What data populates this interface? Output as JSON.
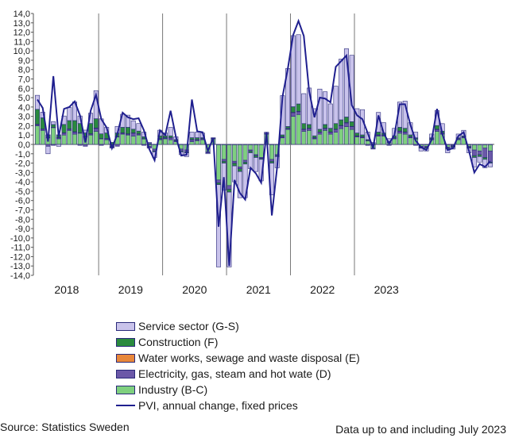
{
  "colors": {
    "service": "#c9c3eb",
    "construction": "#2a8a3e",
    "water": "#e8873a",
    "electricity": "#6b58a8",
    "industry": "#7fd07f",
    "line": "#1f1f8f",
    "outline": "#2a2a7a"
  },
  "chart_data": {
    "type": "bar",
    "stacked": true,
    "ylim": [
      -14,
      14
    ],
    "yticks": [
      "14,0",
      "13,0",
      "12,0",
      "11,0",
      "10,0",
      "9,0",
      "8,0",
      "7,0",
      "6,0",
      "5,0",
      "4,0",
      "3,0",
      "2,0",
      "1,0",
      "0,0",
      "-1,0",
      "-2,0",
      "-3,0",
      "-4,0",
      "-5,0",
      "-6,0",
      "-7,0",
      "-8,0",
      "-9,0",
      "-10,0",
      "-11,0",
      "-12,0",
      "-13,0",
      "-14,0"
    ],
    "years": [
      "2018",
      "2019",
      "2020",
      "2021",
      "2022",
      "2023"
    ],
    "legend_position": "bottom",
    "series": [
      {
        "name": "Service sector (G-S)",
        "key": "service",
        "values": [
          1.5,
          0.6,
          -0.8,
          0.3,
          -0.2,
          0.9,
          1.4,
          2.0,
          0.8,
          0.3,
          1.1,
          3.0,
          1.6,
          0.6,
          -0.1,
          0.7,
          1.4,
          1.3,
          0.9,
          0.8,
          0.5,
          0.1,
          -0.6,
          0.6,
          0.3,
          0.9,
          0.3,
          -0.3,
          -0.4,
          0.6,
          0.6,
          0.5,
          -0.1,
          0,
          -8.8,
          -2.9,
          -8.0,
          -1.7,
          -2.8,
          -3.6,
          -1.7,
          -1.5,
          -2.3,
          0.1,
          -3.4,
          -1.2,
          4.2,
          6.2,
          7.6,
          7.4,
          3.2,
          3.9,
          2.9,
          4.3,
          3.5,
          2.6,
          4.0,
          6.5,
          7.3,
          7.1,
          2.6,
          2.7,
          0.8,
          0.1,
          2.1,
          1.1,
          0.3,
          0.8,
          2.7,
          2.9,
          1.3,
          0.6,
          -0.3,
          -0.3,
          0.4,
          1.6,
          0.8,
          -0.4,
          -0.2,
          0.4,
          0.6,
          -0.5,
          -1.0,
          -0.6,
          -0.9,
          -0.4
        ]
      },
      {
        "name": "Construction (F)",
        "key": "construction",
        "values": [
          1.6,
          1.2,
          0.3,
          0.3,
          0.3,
          0.9,
          0.9,
          1.2,
          1.0,
          0.4,
          1.1,
          1.0,
          0.5,
          0.6,
          0.2,
          0.4,
          0.6,
          0.7,
          0.4,
          0.3,
          0.2,
          0.1,
          -0.1,
          0.3,
          0.2,
          0.2,
          0.1,
          -0.1,
          -0.1,
          0.2,
          0.2,
          0.1,
          0,
          0,
          -0.2,
          -0.2,
          -0.3,
          -0.3,
          -0.3,
          -0.2,
          -0.2,
          -0.2,
          -0.1,
          0,
          -0.2,
          -0.1,
          0.2,
          0.2,
          0.6,
          0.8,
          0.6,
          0.4,
          0.2,
          0.3,
          0.4,
          0.4,
          0.6,
          0.6,
          0.6,
          0.5,
          0.3,
          0.2,
          0.1,
          0.1,
          0.3,
          0.2,
          0.1,
          0.2,
          0.4,
          0.4,
          0.2,
          0.1,
          -0.1,
          -0.1,
          0.1,
          0.4,
          0.2,
          -0.1,
          -0.1,
          0.1,
          0.1,
          -0.1,
          -0.2,
          -0.2,
          -0.2,
          -0.1
        ]
      },
      {
        "name": "Water works, sewage and waste disposal (E)",
        "key": "water",
        "values": [
          0.05,
          0.05,
          0.03,
          0.03,
          0.03,
          0.04,
          0.05,
          0.05,
          0.04,
          0.03,
          0.04,
          0.05,
          0.03,
          0.03,
          0.02,
          0.03,
          0.03,
          0.03,
          0.03,
          0.03,
          0.02,
          0.02,
          0.02,
          0.02,
          0.02,
          0.02,
          0.02,
          0.02,
          0.02,
          0.02,
          0.02,
          0.02,
          0.01,
          0.01,
          0.01,
          0.01,
          0.01,
          0.01,
          0.01,
          0.01,
          0.01,
          0.01,
          0.01,
          0.01,
          0.01,
          0.01,
          0.02,
          0.02,
          0.03,
          0.03,
          0.03,
          0.03,
          0.02,
          0.02,
          0.03,
          0.03,
          0.03,
          0.03,
          0.03,
          0.03,
          0.02,
          0.02,
          0.02,
          0.01,
          0.02,
          0.02,
          0.01,
          0.02,
          0.03,
          0.03,
          0.02,
          0.01,
          0.01,
          0.01,
          0.01,
          0.02,
          0.02,
          0.01,
          0.01,
          0.01,
          0.01,
          0.01,
          0.01,
          0.01,
          0.01,
          0.01
        ]
      },
      {
        "name": "Electricity, gas, steam and hot wate (D)",
        "key": "electricity",
        "values": [
          0.1,
          0.1,
          -0.2,
          -0.1,
          0.1,
          0.2,
          0.1,
          0.2,
          -0.1,
          -0.2,
          0.1,
          0.3,
          -0.1,
          0.1,
          -0.1,
          -0.2,
          0.1,
          0.1,
          0.3,
          0.1,
          -0.1,
          -0.2,
          -0.2,
          0.1,
          0.1,
          0.2,
          0.1,
          -0.2,
          -0.2,
          0.2,
          0.1,
          0.1,
          -0.1,
          0.1,
          -0.3,
          -0.2,
          -0.4,
          -0.2,
          -0.2,
          -0.2,
          -0.1,
          -0.1,
          -0.1,
          0.1,
          -0.2,
          -0.1,
          0.1,
          0.1,
          0.4,
          0.3,
          0.2,
          0.2,
          0.1,
          0.2,
          0.2,
          0.2,
          0.3,
          0.3,
          0.4,
          0.3,
          0.1,
          0.1,
          -0.1,
          -0.1,
          0.1,
          0.1,
          -0.1,
          0.1,
          0.2,
          0.2,
          0.1,
          -0.1,
          -0.1,
          -0.1,
          0.1,
          0.2,
          0.1,
          -0.1,
          -0.1,
          0.1,
          0.1,
          -0.1,
          -0.6,
          -0.4,
          -1.0,
          -1.2
        ]
      },
      {
        "name": "Industry (B-C)",
        "key": "industry",
        "values": [
          2.0,
          1.5,
          0.7,
          1.8,
          0.6,
          1.0,
          1.5,
          1.1,
          1.2,
          0.8,
          1.0,
          1.4,
          0.6,
          0.5,
          -0.2,
          0.8,
          1.1,
          1.0,
          0.9,
          1.0,
          0.6,
          -0.2,
          -0.5,
          0.5,
          0.6,
          0.5,
          0.3,
          -0.5,
          -0.6,
          0.3,
          0.4,
          0.5,
          -0.8,
          0.6,
          -3.8,
          -1.6,
          -4.4,
          -1.8,
          -2.4,
          -1.7,
          -0.6,
          -1.1,
          -1.4,
          1.1,
          -1.6,
          -1.1,
          0.7,
          1.6,
          3.0,
          3.2,
          1.4,
          1.5,
          0.6,
          1.1,
          1.5,
          1.1,
          1.3,
          1.7,
          1.9,
          1.6,
          0.8,
          0.7,
          0.4,
          -0.4,
          0.9,
          0.9,
          0.2,
          0.6,
          1.2,
          1.1,
          0.7,
          0.6,
          -0.2,
          -0.2,
          0.5,
          1.4,
          1.1,
          -0.3,
          -0.1,
          0.5,
          0.7,
          -0.2,
          -0.6,
          -0.7,
          -0.4,
          -0.7
        ]
      },
      {
        "name": "PVI, annual change, fixed prices",
        "key": "pvi",
        "type": "line",
        "values": [
          4.8,
          3.9,
          0.3,
          7.3,
          0.8,
          3.8,
          4.0,
          4.6,
          3.1,
          0.2,
          3.6,
          5.3,
          2.7,
          1.8,
          -0.4,
          1.1,
          3.4,
          2.9,
          2.7,
          2.8,
          1.5,
          -0.5,
          -1.7,
          1.5,
          1.0,
          3.6,
          0.8,
          -1.2,
          -1.1,
          4.8,
          1.4,
          1.3,
          -0.7,
          0.7,
          -8.8,
          -3.5,
          -13.0,
          -3.8,
          -5.2,
          -5.9,
          -2.5,
          -3.1,
          -4.1,
          1.3,
          -7.6,
          -2.4,
          5.1,
          8.1,
          11.7,
          13.2,
          11.6,
          5.7,
          2.9,
          5.0,
          4.9,
          4.5,
          8.3,
          8.9,
          9.5,
          4.2,
          3.1,
          2.7,
          1.2,
          -0.4,
          3.1,
          1.2,
          0.1,
          1.0,
          4.3,
          4.3,
          2.1,
          0.4,
          -0.3,
          -0.6,
          0.5,
          3.8,
          1.1,
          -0.6,
          -0.4,
          0.9,
          1.3,
          -0.7,
          -3.0,
          -2.1,
          -2.4,
          -1.8
        ]
      }
    ]
  },
  "legend": {
    "service": "Service sector (G-S)",
    "construction": "Construction (F)",
    "water": "Water works, sewage and waste disposal (E)",
    "electricity": "Electricity, gas, steam and hot wate (D)",
    "industry": "Industry (B-C)",
    "pvi": "PVI, annual change, fixed prices"
  },
  "footer": {
    "source": "Source: Statistics Sweden",
    "note": "Data up to and including July 2023"
  }
}
